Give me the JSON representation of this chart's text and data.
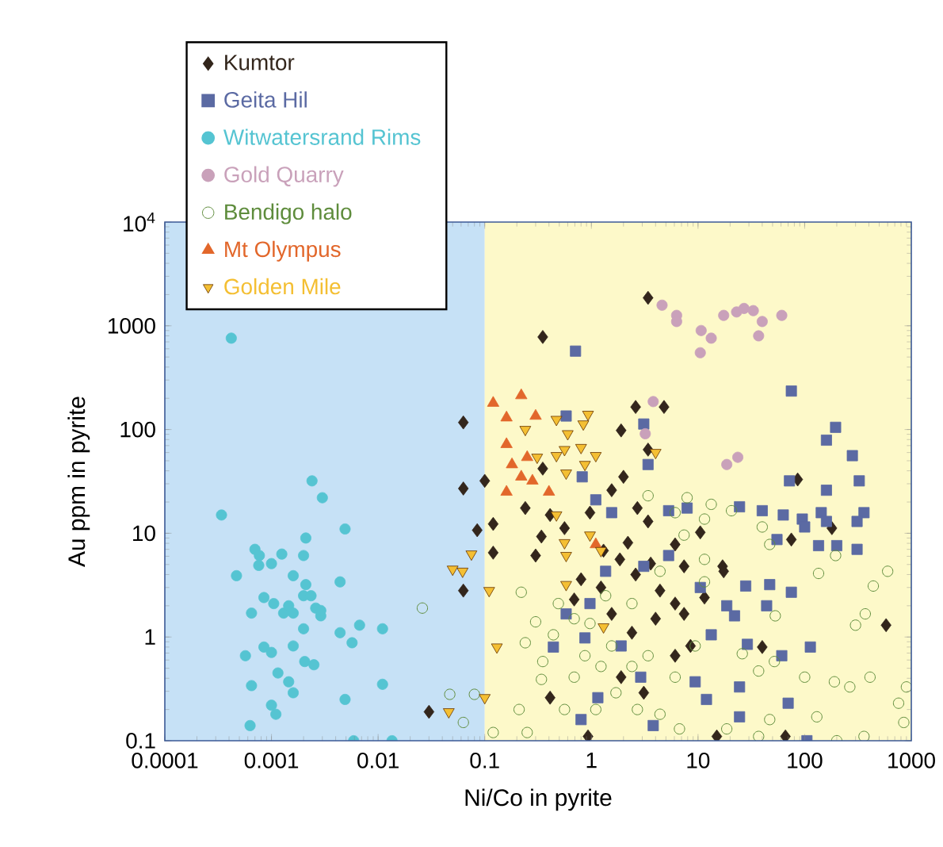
{
  "chart_data": {
    "type": "scatter",
    "xlabel": "Ni/Co in pyrite",
    "ylabel": "Au ppm in pyrite",
    "log": "xy",
    "legend": "top left",
    "xlim": [
      0.0001,
      1000
    ],
    "ylim": [
      0.1,
      10000
    ],
    "xticks": [
      0.0001,
      0.001,
      0.01,
      0.1,
      1,
      10,
      100,
      1000
    ],
    "yticks": [
      0.1,
      1,
      10,
      100,
      1000,
      {
        "value": 10000,
        "label": "10$^{4}$"
      }
    ],
    "bands": [
      {
        "axis": "x",
        "from": 0.0001,
        "to": 0.1,
        "color": "#c6e1f6"
      },
      {
        "axis": "x",
        "from": 0.1,
        "to": 1000,
        "color": "#fdf9c9"
      }
    ],
    "series": [
      {
        "name": "Kumtor",
        "color": "#33261c",
        "marker": "diamond",
        "x": [
          0.063,
          0.063,
          0.1,
          0.085,
          0.063,
          0.03,
          3.4,
          0.35,
          2.6,
          4.8,
          1.9,
          3.4,
          0.35,
          0.24,
          0.12,
          0.12,
          0.41,
          0.56,
          0.34,
          0.3,
          0.97,
          1.55,
          2.0,
          2.7,
          3.4,
          2.2,
          1.3,
          0.8,
          0.69,
          1.85,
          2.6,
          3.6,
          4.4,
          6.1,
          7.4,
          6.1,
          4.0,
          7.4,
          8.5,
          6.1,
          2.4,
          1.55,
          1.9,
          3.1,
          0.93,
          0.41,
          1.23,
          86,
          75,
          180,
          17,
          17.4,
          10.5,
          11.5,
          40,
          580,
          15,
          66
        ],
        "values": [
          117,
          27,
          32,
          10.7,
          2.8,
          0.19,
          1860,
          780,
          165,
          165,
          98,
          64,
          42,
          17.5,
          12.3,
          6.5,
          15,
          11.2,
          9.3,
          6.1,
          15.8,
          26,
          35,
          17.5,
          13,
          8.1,
          6.8,
          3.6,
          2.3,
          5.6,
          4.0,
          5.1,
          2.8,
          7.8,
          4.8,
          2.1,
          1.5,
          1.67,
          0.82,
          0.66,
          1.1,
          1.67,
          0.41,
          0.29,
          0.11,
          0.26,
          3.0,
          33,
          8.7,
          11.2,
          4.8,
          4.3,
          10.2,
          2.4,
          0.8,
          1.3,
          0.11,
          0.11
        ]
      },
      {
        "name": "Geita Hil",
        "color": "#5b6aa3",
        "marker": "square",
        "x": [
          0.71,
          75,
          0.58,
          3.1,
          195,
          160,
          280,
          0.82,
          1.1,
          1.55,
          3.4,
          5.3,
          7.9,
          0.58,
          0.97,
          1.36,
          3.1,
          5.3,
          10.5,
          0.44,
          0.87,
          2.9,
          1.9,
          1.15,
          3.8,
          9.4,
          0.8,
          325,
          160,
          72,
          24.5,
          40,
          63,
          95,
          100,
          143,
          160,
          360,
          310,
          55,
          135,
          200,
          310,
          28,
          47,
          75,
          44,
          18.6,
          22,
          29,
          13.3,
          113,
          61,
          24.5,
          12,
          70,
          24.5,
          105
        ],
        "values": [
          570,
          235,
          135,
          113,
          105,
          79,
          56,
          35,
          21,
          15.8,
          46,
          16.5,
          17.5,
          1.67,
          2.1,
          4.3,
          4.8,
          6.1,
          3.0,
          0.8,
          0.98,
          0.41,
          0.82,
          0.26,
          0.14,
          0.37,
          0.16,
          32,
          26,
          32,
          18,
          16.5,
          15,
          13.7,
          11.5,
          15.8,
          13,
          15.8,
          13,
          8.7,
          7.6,
          7.6,
          7.0,
          3.1,
          3.2,
          2.7,
          2.0,
          2.0,
          1.6,
          0.85,
          1.05,
          0.8,
          0.66,
          0.33,
          0.25,
          0.23,
          0.17,
          0.1
        ]
      },
      {
        "name": "Witwatersrand Rims",
        "color": "#55c4d2",
        "marker": "circle",
        "x": [
          0.00042,
          0.00034,
          0.00047,
          0.0007,
          0.00077,
          0.00076,
          0.001,
          0.00125,
          0.002,
          0.0021,
          0.0024,
          0.003,
          0.0049,
          0.0016,
          0.0021,
          0.0044,
          0.00065,
          0.00085,
          0.00105,
          0.0013,
          0.00145,
          0.0016,
          0.002,
          0.00235,
          0.0026,
          0.0029,
          0.0029,
          0.0067,
          0.011,
          0.002,
          0.0044,
          0.0016,
          0.00085,
          0.001,
          0.00057,
          0.0057,
          0.00205,
          0.0025,
          0.00115,
          0.00145,
          0.0016,
          0.00065,
          0.011,
          0.001,
          0.0011,
          0.0049,
          0.00063,
          0.0059,
          0.0135
        ],
        "values": [
          760,
          15,
          3.9,
          7,
          6.1,
          4.9,
          5.1,
          6.3,
          6.1,
          9,
          32,
          22,
          11,
          3.9,
          3.2,
          3.4,
          1.7,
          2.4,
          2.1,
          1.7,
          2.0,
          1.7,
          2.5,
          2.5,
          1.9,
          1.6,
          1.8,
          1.3,
          1.2,
          1.2,
          1.1,
          0.82,
          0.8,
          0.71,
          0.66,
          0.88,
          0.58,
          0.54,
          0.45,
          0.37,
          0.29,
          0.34,
          0.35,
          0.22,
          0.18,
          0.25,
          0.14,
          0.1,
          0.1
        ]
      },
      {
        "name": "Gold Quarry",
        "color": "#c9a1ba",
        "marker": "circle",
        "x": [
          4.6,
          6.3,
          6.3,
          10.7,
          13.3,
          10.5,
          17.4,
          23,
          27,
          33,
          40,
          37,
          61,
          3.8,
          3.2,
          18.6,
          23.6
        ],
        "values": [
          1580,
          1260,
          1100,
          900,
          760,
          550,
          1260,
          1360,
          1470,
          1400,
          1100,
          800,
          1260,
          186,
          91,
          46,
          54
        ]
      },
      {
        "name": "Bendigo halo",
        "color": "#5e8c3c",
        "marker": "open circle",
        "x": [
          0.026,
          0.047,
          0.08,
          0.063,
          3.4,
          7.9,
          0.22,
          0.3,
          0.24,
          0.44,
          0.35,
          0.34,
          0.21,
          0.12,
          0.25,
          0.56,
          0.69,
          0.87,
          1.23,
          1.55,
          2.4,
          1.7,
          2.7,
          4.4,
          3.4,
          6.1,
          1.36,
          2.4,
          0.97,
          6.1,
          11.5,
          7.4,
          4.4,
          0.69,
          0.49,
          1.1,
          6.7,
          9.4,
          13.3,
          20.6,
          40,
          47,
          135,
          195,
          600,
          440,
          370,
          300,
          53,
          11.5,
          11.5,
          26,
          37,
          52,
          100,
          190,
          265,
          410,
          900,
          760,
          850,
          130,
          47,
          18.6,
          200,
          360,
          37
        ],
        "values": [
          1.9,
          0.28,
          0.28,
          0.15,
          23,
          22,
          2.7,
          1.4,
          0.88,
          1.05,
          0.58,
          0.39,
          0.2,
          0.12,
          0.12,
          0.2,
          0.41,
          0.66,
          0.52,
          0.82,
          0.52,
          0.29,
          0.2,
          0.18,
          0.66,
          0.41,
          2.5,
          2.1,
          1.35,
          15.8,
          13.7,
          9.6,
          4.3,
          1.5,
          2.1,
          0.2,
          0.13,
          0.82,
          19,
          16.5,
          11.5,
          7.8,
          4.1,
          6.1,
          4.3,
          3.1,
          1.67,
          1.3,
          1.6,
          5.6,
          3.4,
          0.69,
          0.47,
          0.58,
          0.41,
          0.37,
          0.33,
          0.41,
          0.33,
          0.23,
          0.15,
          0.17,
          0.16,
          0.13,
          0.1,
          0.11,
          0.11
        ]
      },
      {
        "name": "Mt Olympus",
        "color": "#e2672b",
        "marker": "triangle",
        "x": [
          0.22,
          0.12,
          0.16,
          0.3,
          0.16,
          0.18,
          0.22,
          0.16,
          0.4,
          0.28,
          0.25,
          1.1
        ],
        "values": [
          213,
          180,
          130,
          135,
          72,
          46,
          35,
          25,
          25,
          32,
          54,
          7.8
        ]
      },
      {
        "name": "Golden Mile",
        "color": "#f4bf33",
        "marker": "triangle down",
        "x": [
          0.05,
          0.062,
          0.075,
          0.046,
          0.47,
          0.93,
          0.84,
          0.6,
          0.56,
          0.8,
          0.47,
          1.1,
          4.0,
          0.24,
          0.31,
          0.58,
          0.87,
          0.47,
          0.56,
          0.58,
          0.97,
          1.23,
          0.58,
          0.11,
          0.13,
          0.1,
          1.3
        ],
        "values": [
          4.5,
          4.3,
          6.3,
          0.19,
          125,
          140,
          113,
          91,
          64,
          67,
          56,
          56,
          60,
          100,
          54,
          38,
          46,
          15,
          8.1,
          6.1,
          9.6,
          6.8,
          3.2,
          2.8,
          0.8,
          0.26,
          1.25
        ]
      }
    ]
  }
}
